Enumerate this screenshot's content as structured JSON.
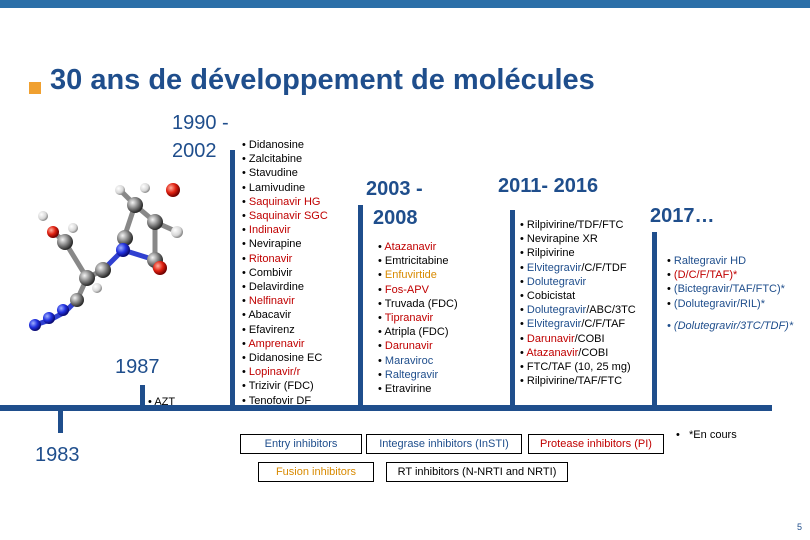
{
  "title": "30 ans de développement de molécules",
  "periods": {
    "p1983": "1983",
    "p1987": "1987",
    "p1990": "1990  -",
    "p1990b": "2002",
    "p2003": "2003 -",
    "p2003b": "2008",
    "p2011": "2011- 2016",
    "p2017": "2017…"
  },
  "azt": "AZT",
  "list_1990_2002": [
    {
      "text": "Didanosine",
      "color": "black"
    },
    {
      "text": "Zalcitabine",
      "color": "black"
    },
    {
      "text": "Stavudine",
      "color": "black"
    },
    {
      "text": "Lamivudine",
      "color": "black"
    },
    {
      "text": "Saquinavir HG",
      "color": "red"
    },
    {
      "text": "Saquinavir SGC",
      "color": "red"
    },
    {
      "text": "Indinavir",
      "color": "red"
    },
    {
      "text": "Nevirapine",
      "color": "black"
    },
    {
      "text": "Ritonavir",
      "color": "red"
    },
    {
      "text": "Combivir",
      "color": "black"
    },
    {
      "text": "Delavirdine",
      "color": "black"
    },
    {
      "text": "Nelfinavir",
      "color": "red"
    },
    {
      "text": "Abacavir",
      "color": "black"
    },
    {
      "text": "Efavirenz",
      "color": "black"
    },
    {
      "text": "Amprenavir",
      "color": "red"
    },
    {
      "text": "Didanosine EC",
      "color": "black"
    },
    {
      "text": "Lopinavir/r",
      "color": "red"
    },
    {
      "text": "Trizivir (FDC)",
      "color": "black"
    },
    {
      "text": "Tenofovir DF",
      "color": "black"
    }
  ],
  "list_2003_2008": [
    {
      "text": "Atazanavir",
      "color": "red"
    },
    {
      "text": "Emtricitabine",
      "color": "black"
    },
    {
      "text": "Enfuvirtide",
      "color": "orange"
    },
    {
      "text": "Fos-APV",
      "color": "red"
    },
    {
      "text": "Truvada (FDC)",
      "color": "black"
    },
    {
      "text": "Tipranavir",
      "color": "red"
    },
    {
      "text": "Atripla (FDC)",
      "color": "black"
    },
    {
      "text": "Darunavir",
      "color": "red"
    },
    {
      "text": "Maraviroc",
      "color": "blue"
    },
    {
      "text": "Raltegravir",
      "color": "blue"
    },
    {
      "text": "Etravirine",
      "color": "black"
    }
  ],
  "list_2011_2016": [
    [
      {
        "text": "Rilpivirine/TDF/FTC",
        "color": "black"
      }
    ],
    [
      {
        "text": "Nevirapine XR",
        "color": "black"
      }
    ],
    [
      {
        "text": "Rilpivirine",
        "color": "black"
      }
    ],
    [
      {
        "text": "Elvitegravir",
        "color": "blue"
      },
      {
        "text": "/C/F/TDF",
        "color": "black"
      }
    ],
    [
      {
        "text": "Dolutegravir",
        "color": "blue"
      }
    ],
    [
      {
        "text": "Cobicistat",
        "color": "black"
      }
    ],
    [
      {
        "text": "Dolutegravir",
        "color": "blue"
      },
      {
        "text": "/ABC/3TC",
        "color": "black"
      }
    ],
    [
      {
        "text": "Elvitegravir",
        "color": "blue"
      },
      {
        "text": "/C/F/TAF",
        "color": "black"
      }
    ],
    [
      {
        "text": "Darunavir",
        "color": "red"
      },
      {
        "text": "/COBI",
        "color": "black"
      }
    ],
    [
      {
        "text": "Atazanavir",
        "color": "red"
      },
      {
        "text": "/COBI",
        "color": "black"
      }
    ],
    [
      {
        "text": "FTC/TAF (10, 25 mg)",
        "color": "black"
      }
    ],
    [
      {
        "text": "Rilpivirine/TAF/FTC",
        "color": "black"
      }
    ]
  ],
  "list_2017": [
    {
      "text": "Raltegravir HD",
      "color": "blue"
    },
    {
      "text": "(D/C/F/TAF)*",
      "color": "red"
    },
    {
      "text": "(Bictegravir/TAF/FTC)*",
      "color": "blue"
    },
    {
      "text": "(Dolutegravir/RIL)*",
      "color": "blue"
    }
  ],
  "extra_2017": "(Dolutegravir/3TC/TDF)*",
  "en_cours": "*En cours",
  "legend": {
    "entry": "Entry inhibitors",
    "fusion": "Fusion inhibitors",
    "integrase": "Integrase inhibitors (InSTI)",
    "rt": "RT inhibitors (N-NRTI and NRTI)",
    "protease": "Protease inhibitors (PI)"
  },
  "page_number": "5",
  "colors": {
    "accent": "#1f4e8c",
    "protease": "#c00000",
    "fusion": "#d88a00",
    "bullet": "#f0a030"
  }
}
